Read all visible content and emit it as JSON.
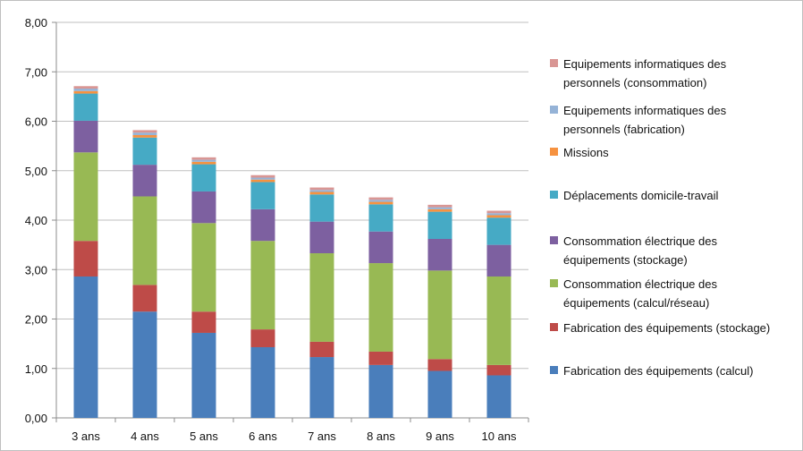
{
  "chart_data": {
    "type": "bar",
    "stacked": true,
    "categories": [
      "3 ans",
      "4 ans",
      "5 ans",
      "6 ans",
      "7 ans",
      "8 ans",
      "9 ans",
      "10 ans"
    ],
    "ylim": [
      0,
      8
    ],
    "y_ticks": [
      "0,00",
      "1,00",
      "2,00",
      "3,00",
      "4,00",
      "5,00",
      "6,00",
      "7,00",
      "8,00"
    ],
    "y_tick_values": [
      0,
      1,
      2,
      3,
      4,
      5,
      6,
      7,
      8
    ],
    "grid": true,
    "legend_position": "right",
    "series": [
      {
        "name": "Fabrication des équipements (calcul)",
        "color": "#4A7EBB",
        "values": [
          2.86,
          2.15,
          1.72,
          1.43,
          1.23,
          1.07,
          0.95,
          0.86
        ]
      },
      {
        "name": "Fabrication des équipements (stockage)",
        "color": "#BE4B48",
        "values": [
          0.72,
          0.54,
          0.43,
          0.36,
          0.31,
          0.27,
          0.24,
          0.21
        ]
      },
      {
        "name": "Consommation électrique des équipements (calcul/réseau)",
        "color": "#98B954",
        "values": [
          1.79,
          1.79,
          1.79,
          1.79,
          1.79,
          1.79,
          1.79,
          1.79
        ]
      },
      {
        "name": "Consommation électrique des équipements (stockage)",
        "color": "#7D60A0",
        "values": [
          0.64,
          0.64,
          0.64,
          0.64,
          0.64,
          0.64,
          0.64,
          0.64
        ]
      },
      {
        "name": "Déplacements domicile-travail",
        "color": "#46AAC5",
        "values": [
          0.55,
          0.55,
          0.55,
          0.55,
          0.55,
          0.55,
          0.55,
          0.55
        ]
      },
      {
        "name": "Missions",
        "color": "#F69240",
        "values": [
          0.05,
          0.05,
          0.05,
          0.05,
          0.05,
          0.05,
          0.05,
          0.05
        ]
      },
      {
        "name": "Equipements informatiques des personnels (fabrication)",
        "color": "#95B3D7",
        "values": [
          0.05,
          0.05,
          0.04,
          0.04,
          0.04,
          0.04,
          0.04,
          0.04
        ]
      },
      {
        "name": "Equipements informatiques des personnels (consommation)",
        "color": "#D99694",
        "values": [
          0.05,
          0.05,
          0.05,
          0.05,
          0.05,
          0.05,
          0.05,
          0.05
        ]
      }
    ],
    "legend": [
      {
        "lines": [
          "Equipements informatiques des",
          "personnels (consommation)"
        ]
      },
      {
        "lines": [
          "Equipements informatiques des",
          "personnels (fabrication)"
        ]
      },
      {
        "lines": [
          "Missions"
        ]
      },
      {
        "lines": [
          "Déplacements domicile-travail"
        ]
      },
      {
        "lines": [
          "Consommation électrique des",
          "équipements (stockage)"
        ]
      },
      {
        "lines": [
          "Consommation électrique des",
          "équipements (calcul/réseau)"
        ]
      },
      {
        "lines": [
          "Fabrication des équipements (stockage)"
        ]
      },
      {
        "lines": [
          "Fabrication des équipements (calcul)"
        ]
      }
    ]
  }
}
